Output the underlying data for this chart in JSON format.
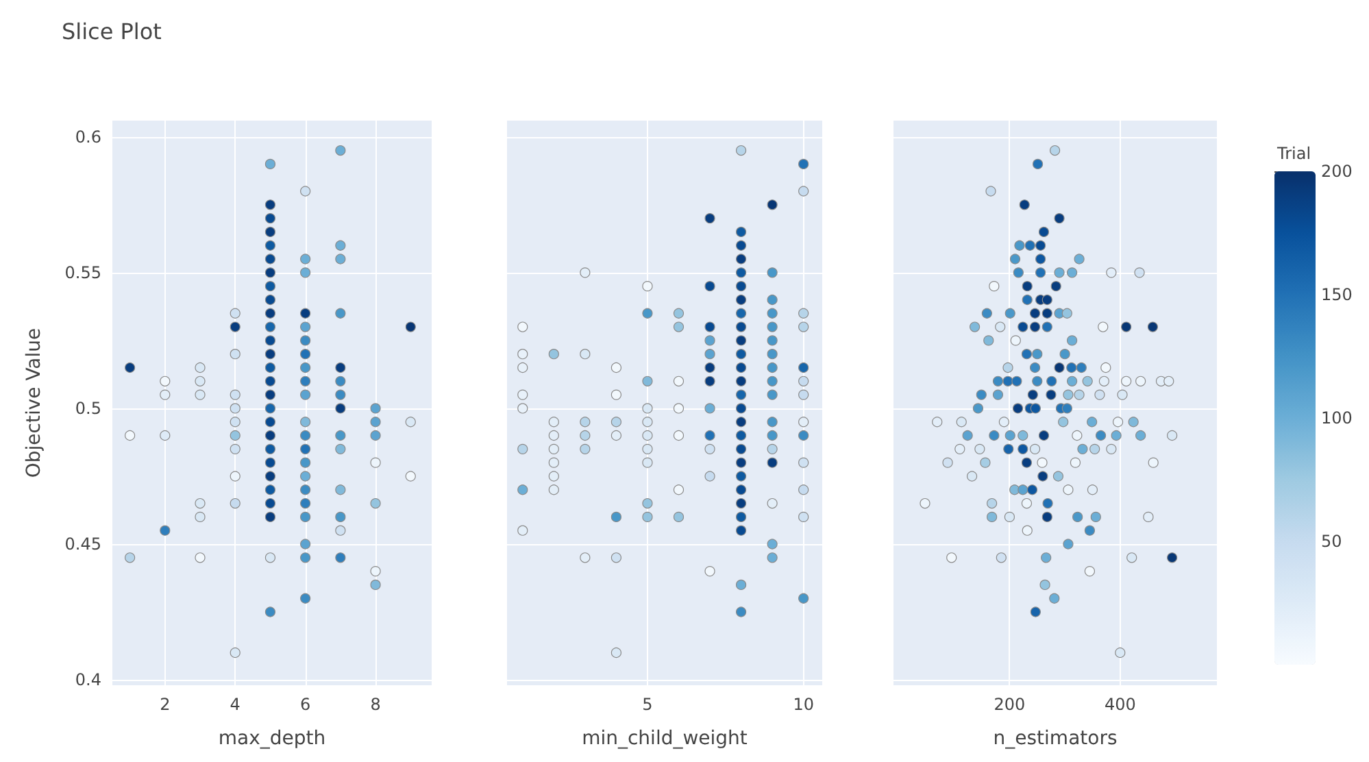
{
  "chart_data": [
    {
      "type": "scatter",
      "title": "Slice Plot",
      "xlabel": "max_depth",
      "ylabel": "Objective Value",
      "xlim": [
        0.5,
        9.6
      ],
      "xticks": [
        2,
        4,
        6,
        8
      ],
      "ylim": [
        0.398,
        0.606
      ],
      "yticks": [
        0.4,
        0.45,
        0.5,
        0.55,
        0.6
      ],
      "grid": true,
      "marker": "circle",
      "x": [
        1,
        1,
        1,
        2,
        2,
        2,
        2,
        3,
        3,
        3,
        3,
        3,
        3,
        4,
        4,
        4,
        4,
        4,
        4,
        4,
        4,
        4,
        4,
        4,
        5,
        5,
        5,
        5,
        5,
        5,
        5,
        5,
        5,
        5,
        5,
        5,
        5,
        5,
        5,
        5,
        5,
        5,
        5,
        5,
        5,
        5,
        5,
        5,
        5,
        5,
        5,
        6,
        6,
        6,
        6,
        6,
        6,
        6,
        6,
        6,
        6,
        6,
        6,
        6,
        6,
        6,
        6,
        6,
        6,
        6,
        6,
        6,
        7,
        7,
        7,
        7,
        7,
        7,
        7,
        7,
        7,
        7,
        7,
        7,
        7,
        7,
        8,
        8,
        8,
        8,
        8,
        8,
        8,
        9,
        9,
        9
      ],
      "values": [
        0.515,
        0.49,
        0.445,
        0.51,
        0.505,
        0.49,
        0.455,
        0.515,
        0.51,
        0.505,
        0.465,
        0.46,
        0.445,
        0.535,
        0.53,
        0.52,
        0.505,
        0.5,
        0.495,
        0.49,
        0.485,
        0.475,
        0.465,
        0.41,
        0.59,
        0.575,
        0.57,
        0.565,
        0.56,
        0.555,
        0.55,
        0.545,
        0.54,
        0.535,
        0.53,
        0.525,
        0.52,
        0.515,
        0.51,
        0.505,
        0.5,
        0.495,
        0.49,
        0.485,
        0.48,
        0.475,
        0.47,
        0.465,
        0.46,
        0.445,
        0.425,
        0.58,
        0.555,
        0.55,
        0.535,
        0.53,
        0.525,
        0.52,
        0.515,
        0.51,
        0.505,
        0.495,
        0.49,
        0.485,
        0.48,
        0.475,
        0.47,
        0.465,
        0.46,
        0.45,
        0.445,
        0.43,
        0.595,
        0.56,
        0.555,
        0.535,
        0.515,
        0.51,
        0.505,
        0.5,
        0.49,
        0.485,
        0.47,
        0.46,
        0.455,
        0.445,
        0.5,
        0.495,
        0.49,
        0.48,
        0.465,
        0.44,
        0.435,
        0.53,
        0.495,
        0.475
      ],
      "colors": [
        "#083d7f",
        "#f2f8fd",
        "#b6d4e9",
        "#f2f8fd",
        "#e3eef8",
        "#deebf7",
        "#2e7ebc",
        "#d9e8f5",
        "#d9e8f5",
        "#d9e8f5",
        "#d9e8f5",
        "#d9e8f5",
        "#f2f8fd",
        "#cfe1f2",
        "#083d7f",
        "#cfe1f2",
        "#cfe1f2",
        "#cfe1f2",
        "#cfe1f2",
        "#94c4df",
        "#cfe1f2",
        "#edf5fc",
        "#c6dbef",
        "#d9e8f5",
        "#6baed6",
        "#083d7f",
        "#084a91",
        "#083d7f",
        "#0e5aa1",
        "#084a91",
        "#083d7f",
        "#0e5aa1",
        "#084a91",
        "#083d7f",
        "#1766ab",
        "#084a91",
        "#083d7f",
        "#0e5aa1",
        "#084a91",
        "#083d7f",
        "#1766ab",
        "#084a91",
        "#083d7f",
        "#0e5aa1",
        "#084a91",
        "#083d7f",
        "#0e5aa1",
        "#084a91",
        "#083d7f",
        "#d9e8f5",
        "#3b8bc2",
        "#cfe1f2",
        "#6baed6",
        "#6baed6",
        "#083d7f",
        "#5ba3d0",
        "#3b8bc2",
        "#2171b5",
        "#4897c8",
        "#2e7ebc",
        "#5ba3d0",
        "#80b9da",
        "#3b8bc2",
        "#2171b5",
        "#4897c8",
        "#6baed6",
        "#3b8bc2",
        "#2e7ebc",
        "#4897c8",
        "#5ba3d0",
        "#4897c8",
        "#3b8bc2",
        "#6baed6",
        "#6baed6",
        "#6baed6",
        "#4897c8",
        "#083d7f",
        "#3b8bc2",
        "#3b8bc2",
        "#083d7f",
        "#4897c8",
        "#80b9da",
        "#80b9da",
        "#4897c8",
        "#cfe1f2",
        "#2e7ebc",
        "#5ba3d0",
        "#5ba3d0",
        "#5ba3d0",
        "#edf5fc",
        "#94c4df",
        "#edf5fc",
        "#80b9da",
        "#083674",
        "#d9e8f5",
        "#f2f8fd"
      ]
    },
    {
      "type": "scatter",
      "xlabel": "min_child_weight",
      "xlim": [
        0.5,
        10.6
      ],
      "xticks": [
        5,
        10
      ],
      "ylim": [
        0.398,
        0.606
      ],
      "yticks": [
        0.4,
        0.45,
        0.5,
        0.55,
        0.6
      ],
      "grid": true,
      "marker": "circle",
      "tick_labels": "x",
      "x": [
        1,
        1,
        1,
        1,
        1,
        1,
        1,
        1,
        2,
        2,
        2,
        2,
        2,
        2,
        2,
        3,
        3,
        3,
        3,
        3,
        3,
        4,
        4,
        4,
        4,
        4,
        4,
        4,
        5,
        5,
        5,
        5,
        5,
        5,
        5,
        5,
        5,
        5,
        6,
        6,
        6,
        6,
        6,
        6,
        6,
        7,
        7,
        7,
        7,
        7,
        7,
        7,
        7,
        7,
        7,
        7,
        7,
        8,
        8,
        8,
        8,
        8,
        8,
        8,
        8,
        8,
        8,
        8,
        8,
        8,
        8,
        8,
        8,
        8,
        8,
        8,
        8,
        8,
        8,
        8,
        8,
        8,
        8,
        9,
        9,
        9,
        9,
        9,
        9,
        9,
        9,
        9,
        9,
        9,
        9,
        9,
        9,
        9,
        9,
        9,
        10,
        10,
        10,
        10,
        10,
        10,
        10,
        10,
        10,
        10,
        10,
        10,
        10
      ],
      "values": [
        0.53,
        0.52,
        0.515,
        0.505,
        0.5,
        0.485,
        0.47,
        0.455,
        0.52,
        0.495,
        0.49,
        0.485,
        0.48,
        0.475,
        0.47,
        0.55,
        0.52,
        0.495,
        0.49,
        0.485,
        0.445,
        0.515,
        0.505,
        0.495,
        0.49,
        0.46,
        0.445,
        0.41,
        0.545,
        0.535,
        0.51,
        0.5,
        0.495,
        0.49,
        0.485,
        0.48,
        0.465,
        0.46,
        0.535,
        0.53,
        0.51,
        0.5,
        0.49,
        0.47,
        0.46,
        0.57,
        0.545,
        0.53,
        0.525,
        0.52,
        0.515,
        0.51,
        0.5,
        0.49,
        0.485,
        0.475,
        0.44,
        0.595,
        0.565,
        0.56,
        0.555,
        0.55,
        0.545,
        0.54,
        0.535,
        0.53,
        0.525,
        0.52,
        0.515,
        0.51,
        0.505,
        0.5,
        0.495,
        0.49,
        0.485,
        0.48,
        0.475,
        0.47,
        0.465,
        0.46,
        0.455,
        0.435,
        0.425,
        0.575,
        0.55,
        0.54,
        0.535,
        0.53,
        0.525,
        0.52,
        0.515,
        0.51,
        0.505,
        0.495,
        0.49,
        0.485,
        0.48,
        0.465,
        0.45,
        0.445,
        0.59,
        0.58,
        0.535,
        0.53,
        0.515,
        0.51,
        0.505,
        0.495,
        0.49,
        0.48,
        0.47,
        0.46,
        0.43
      ],
      "colors": [
        "#f2f8fd",
        "#e8f1fa",
        "#e8f1fa",
        "#e8f1fa",
        "#e8f1fa",
        "#b6d4e9",
        "#6baed6",
        "#e3eef8",
        "#94c4df",
        "#e3eef8",
        "#e3eef8",
        "#e3eef8",
        "#e3eef8",
        "#e3eef8",
        "#e3eef8",
        "#e3eef8",
        "#d9e8f5",
        "#b6d4e9",
        "#b6d4e9",
        "#b6d4e9",
        "#e3eef8",
        "#f2f8fd",
        "#f2f8fd",
        "#b6d4e9",
        "#e3eef8",
        "#4897c8",
        "#cfe1f2",
        "#d9e8f5",
        "#f2f8fd",
        "#4897c8",
        "#80b9da",
        "#d9e8f5",
        "#d9e8f5",
        "#d9e8f5",
        "#d9e8f5",
        "#d9e8f5",
        "#94c4df",
        "#94c4df",
        "#94c4df",
        "#94c4df",
        "#f2f8fd",
        "#f2f8fd",
        "#f2f8fd",
        "#f2f8fd",
        "#94c4df",
        "#083d7f",
        "#084a91",
        "#084a91",
        "#5ba3d0",
        "#5ba3d0",
        "#083d7f",
        "#083d7f",
        "#6baed6",
        "#2171b5",
        "#cfe1f2",
        "#c6dbef",
        "#f2f8fd",
        "#b6d4e9",
        "#0e5aa1",
        "#084a91",
        "#083d7f",
        "#0e5aa1",
        "#084a91",
        "#083d7f",
        "#1766ab",
        "#084a91",
        "#083d7f",
        "#0e5aa1",
        "#084a91",
        "#083d7f",
        "#1766ab",
        "#084a91",
        "#083d7f",
        "#0e5aa1",
        "#084a91",
        "#083d7f",
        "#0e5aa1",
        "#084a91",
        "#083d7f",
        "#0e5aa1",
        "#084a91",
        "#6baed6",
        "#3b8bc2",
        "#083674",
        "#4897c8",
        "#4897c8",
        "#4897c8",
        "#4897c8",
        "#4897c8",
        "#4897c8",
        "#4897c8",
        "#4897c8",
        "#4897c8",
        "#4897c8",
        "#4897c8",
        "#b6d4e9",
        "#083d7f",
        "#e3eef8",
        "#6baed6",
        "#6baed6",
        "#2171b5",
        "#c6dbef",
        "#b6d4e9",
        "#b6d4e9",
        "#1766ab",
        "#c6dbef",
        "#c6dbef",
        "#e3eef8",
        "#3b8bc2",
        "#cfe1f2",
        "#c6dbef",
        "#cfe1f2",
        "#4897c8"
      ]
    },
    {
      "type": "scatter",
      "xlabel": "n_estimators",
      "xlim": [
        -10,
        575
      ],
      "xticks": [
        200,
        400
      ],
      "ylim": [
        0.398,
        0.606
      ],
      "yticks": [
        0.4,
        0.45,
        0.5,
        0.55,
        0.6
      ],
      "grid": true,
      "marker": "circle",
      "tick_labels": "x",
      "clim": [
        0,
        200
      ],
      "cticks": [
        50,
        100,
        150,
        200
      ],
      "clabel": "Trial",
      "x": [
        282,
        251,
        166,
        227,
        290,
        262,
        218,
        237,
        256,
        210,
        256,
        326,
        216,
        256,
        290,
        313,
        384,
        435,
        172,
        232,
        284,
        232,
        256,
        268,
        159,
        201,
        246,
        268,
        290,
        304,
        137,
        183,
        224,
        246,
        268,
        369,
        411,
        459,
        162,
        211,
        313,
        231,
        250,
        300,
        197,
        246,
        290,
        312,
        330,
        374,
        179,
        197,
        213,
        250,
        276,
        313,
        341,
        371,
        411,
        437,
        474,
        488,
        149,
        179,
        242,
        275,
        306,
        326,
        363,
        404,
        143,
        215,
        237,
        247,
        293,
        304,
        69,
        113,
        190,
        297,
        349,
        396,
        424,
        124,
        172,
        201,
        224,
        262,
        322,
        365,
        393,
        437,
        494,
        110,
        146,
        198,
        224,
        246,
        332,
        354,
        384,
        88,
        156,
        231,
        259,
        319,
        460,
        132,
        260,
        288,
        209,
        224,
        241,
        306,
        350,
        47,
        168,
        231,
        269,
        168,
        200,
        268,
        323,
        356,
        451,
        232,
        345,
        306,
        95,
        185,
        266,
        421,
        494,
        345,
        264,
        281,
        247,
        400
      ],
      "values": [
        0.595,
        0.59,
        0.58,
        0.575,
        0.57,
        0.565,
        0.56,
        0.56,
        0.56,
        0.555,
        0.555,
        0.555,
        0.55,
        0.55,
        0.55,
        0.55,
        0.55,
        0.55,
        0.545,
        0.545,
        0.545,
        0.54,
        0.54,
        0.54,
        0.535,
        0.535,
        0.535,
        0.535,
        0.535,
        0.535,
        0.53,
        0.53,
        0.53,
        0.53,
        0.53,
        0.53,
        0.53,
        0.53,
        0.525,
        0.525,
        0.525,
        0.52,
        0.52,
        0.52,
        0.515,
        0.515,
        0.515,
        0.515,
        0.515,
        0.515,
        0.51,
        0.51,
        0.51,
        0.51,
        0.51,
        0.51,
        0.51,
        0.51,
        0.51,
        0.51,
        0.51,
        0.51,
        0.505,
        0.505,
        0.505,
        0.505,
        0.505,
        0.505,
        0.505,
        0.505,
        0.5,
        0.5,
        0.5,
        0.5,
        0.5,
        0.5,
        0.495,
        0.495,
        0.495,
        0.495,
        0.495,
        0.495,
        0.495,
        0.49,
        0.49,
        0.49,
        0.49,
        0.49,
        0.49,
        0.49,
        0.49,
        0.49,
        0.49,
        0.485,
        0.485,
        0.485,
        0.485,
        0.485,
        0.485,
        0.485,
        0.485,
        0.48,
        0.48,
        0.48,
        0.48,
        0.48,
        0.48,
        0.475,
        0.475,
        0.475,
        0.47,
        0.47,
        0.47,
        0.47,
        0.47,
        0.465,
        0.465,
        0.465,
        0.465,
        0.46,
        0.46,
        0.46,
        0.46,
        0.46,
        0.46,
        0.455,
        0.455,
        0.45,
        0.445,
        0.445,
        0.445,
        0.445,
        0.445,
        0.44,
        0.435,
        0.43,
        0.425,
        0.41
      ],
      "cvalues": [
        60,
        150,
        50,
        190,
        190,
        180,
        120,
        150,
        180,
        120,
        170,
        100,
        130,
        150,
        100,
        100,
        20,
        40,
        5,
        190,
        190,
        150,
        190,
        190,
        130,
        120,
        190,
        190,
        110,
        80,
        90,
        30,
        180,
        190,
        150,
        5,
        195,
        195,
        90,
        10,
        100,
        150,
        120,
        120,
        60,
        130,
        195,
        150,
        140,
        5,
        130,
        150,
        150,
        130,
        150,
        100,
        80,
        20,
        10,
        10,
        20,
        20,
        130,
        110,
        190,
        190,
        80,
        60,
        40,
        30,
        120,
        190,
        170,
        170,
        150,
        140,
        20,
        30,
        20,
        80,
        100,
        10,
        90,
        110,
        130,
        110,
        90,
        190,
        10,
        130,
        100,
        100,
        30,
        20,
        30,
        160,
        170,
        30,
        100,
        60,
        30,
        40,
        70,
        190,
        5,
        10,
        10,
        30,
        190,
        80,
        90,
        110,
        170,
        10,
        20,
        10,
        60,
        10,
        150,
        90,
        30,
        190,
        120,
        100,
        20,
        10,
        130,
        110,
        5,
        40,
        100,
        30,
        195,
        5,
        80,
        100,
        160,
        30
      ]
    }
  ]
}
